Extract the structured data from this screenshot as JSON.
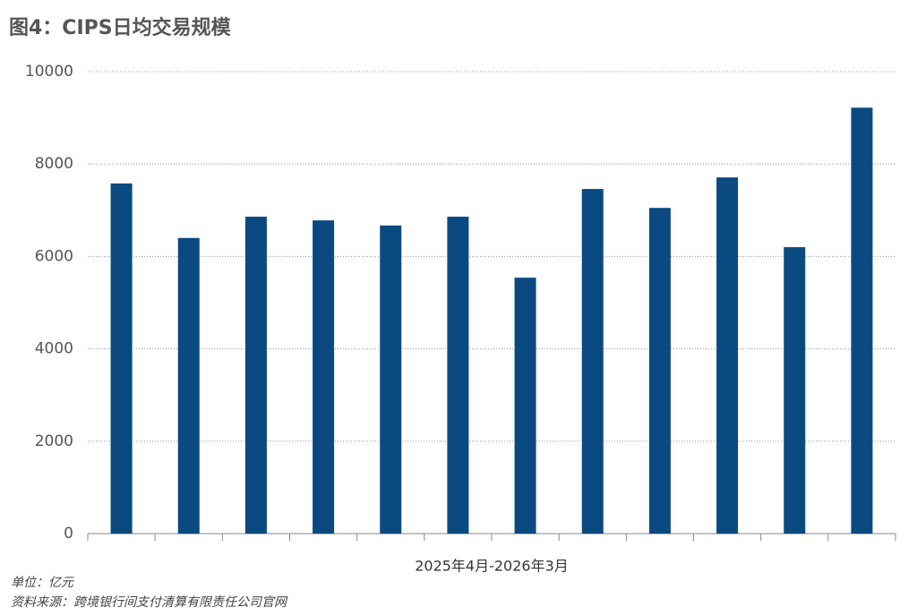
{
  "chart_data": {
    "type": "bar",
    "title": "图4：CIPS日均交易规模",
    "x_label": "2025年4月-2026年3月",
    "notes": [
      "单位：亿元",
      "资料来源：跨境银行间支付清算有限责任公司官网"
    ],
    "categories": [
      null,
      null,
      null,
      null,
      null,
      null,
      null,
      null,
      null,
      null,
      null,
      null
    ],
    "values": [
      7580,
      6400,
      6860,
      6780,
      6670,
      6860,
      5540,
      7460,
      7050,
      7710,
      6200,
      9220
    ],
    "color": "#0b4a80",
    "ylim": [
      0,
      10000
    ],
    "yticks": [
      0,
      2000,
      4000,
      6000,
      8000,
      10000
    ],
    "grid": true
  }
}
